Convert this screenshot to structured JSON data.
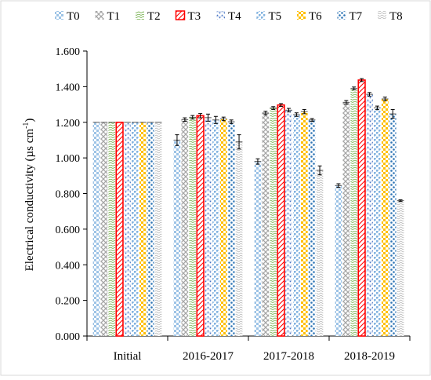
{
  "chart_data": {
    "type": "bar",
    "title": "",
    "xlabel": "",
    "ylabel": "Electrical conductivity (µs cm",
    "ylabel_sup": "-1",
    "ylabel_close": ")",
    "categories": [
      "Initial",
      "2016-2017",
      "2017-2018",
      "2018-2019"
    ],
    "ylim": [
      0,
      1.6
    ],
    "yticks": [
      "0.000",
      "0.200",
      "0.400",
      "0.600",
      "0.800",
      "1.000",
      "1.200",
      "1.400",
      "1.600"
    ],
    "grid": false,
    "legend_position": "top",
    "series": [
      {
        "name": "T0",
        "values": [
          1.2,
          1.1,
          0.98,
          0.845
        ],
        "err": [
          0,
          0.03,
          0.015,
          0.01
        ],
        "color": "#9dc3e6",
        "pattern": "checker"
      },
      {
        "name": "T1",
        "values": [
          1.2,
          1.215,
          1.252,
          1.312
        ],
        "err": [
          0,
          0.01,
          0.01,
          0.01
        ],
        "color": "#a6a6a6",
        "pattern": "crosshatch"
      },
      {
        "name": "T2",
        "values": [
          1.2,
          1.228,
          1.28,
          1.39
        ],
        "err": [
          0,
          0.01,
          0.008,
          0.008
        ],
        "color": "#70ad47",
        "pattern": "wavy"
      },
      {
        "name": "T3",
        "values": [
          1.2,
          1.237,
          1.297,
          1.437
        ],
        "err": [
          0,
          0.012,
          0.008,
          0.008
        ],
        "color": "#ff0000",
        "pattern": "diagonal"
      },
      {
        "name": "T4",
        "values": [
          1.2,
          1.226,
          1.268,
          1.357
        ],
        "err": [
          0,
          0.02,
          0.01,
          0.01
        ],
        "color": "#4472c4",
        "pattern": "dots-small"
      },
      {
        "name": "T5",
        "values": [
          1.2,
          1.213,
          1.243,
          1.281
        ],
        "err": [
          0,
          0.02,
          0.01,
          0.01
        ],
        "color": "#5b9bd5",
        "pattern": "weave"
      },
      {
        "name": "T6",
        "values": [
          1.2,
          1.219,
          1.26,
          1.331
        ],
        "err": [
          0,
          0.01,
          0.012,
          0.01
        ],
        "color": "#ffc000",
        "pattern": "checker"
      },
      {
        "name": "T7",
        "values": [
          1.2,
          1.203,
          1.213,
          1.247
        ],
        "err": [
          0,
          0.01,
          0.008,
          0.025
        ],
        "color": "#2e75b6",
        "pattern": "dots-large"
      },
      {
        "name": "T8",
        "values": [
          1.2,
          1.09,
          0.93,
          0.76
        ],
        "err": [
          0,
          0.04,
          0.025,
          0.005
        ],
        "color": "#bfbfbf",
        "pattern": "ripple"
      }
    ]
  }
}
